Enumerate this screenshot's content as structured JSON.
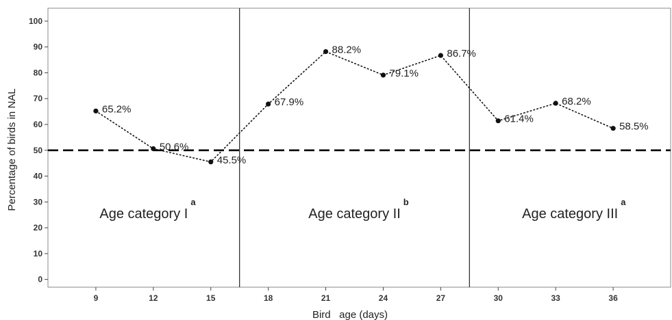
{
  "chart_data": {
    "type": "line",
    "xlabel": "Bird   age (days)",
    "ylabel": "Percentage of birds in NAL",
    "ylim": [
      -3,
      105
    ],
    "yticks": [
      0,
      10,
      20,
      30,
      40,
      50,
      60,
      70,
      80,
      90,
      100
    ],
    "xlim": [
      6.5,
      39
    ],
    "xticks": [
      9,
      12,
      15,
      18,
      21,
      24,
      27,
      30,
      33,
      36
    ],
    "grid": false,
    "series": [
      {
        "x": [
          9,
          12,
          15,
          18,
          21,
          24,
          27,
          30,
          33,
          36
        ],
        "values": [
          65.2,
          50.6,
          45.5,
          67.9,
          88.2,
          79.1,
          86.7,
          61.4,
          68.2,
          58.5
        ],
        "labels": [
          "65.2%",
          "50.6%",
          "45.5%",
          "67.9%",
          "88.2%",
          "79.1%",
          "86.7%",
          "61.4%",
          "68.2%",
          "58.5%"
        ],
        "line_style": "dotted",
        "color": "#111111"
      }
    ],
    "reference_line": {
      "y": 50,
      "style": "dashed",
      "color": "#000000"
    },
    "category_dividers": [
      16.5,
      28.5
    ],
    "categories": [
      {
        "label": "Age category I",
        "sup": "a"
      },
      {
        "label": "Age category II",
        "sup": "b"
      },
      {
        "label": "Age category III",
        "sup": "a"
      }
    ]
  }
}
